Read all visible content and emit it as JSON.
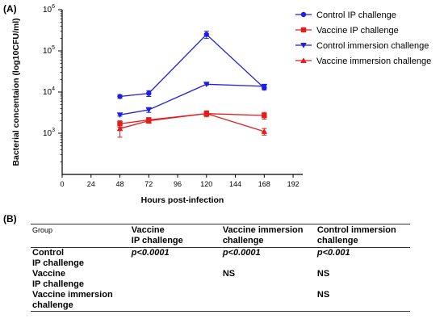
{
  "panel_a_label": "(A)",
  "panel_b_label": "(B)",
  "chart_data": {
    "type": "line",
    "xlabel": "Hours post-infection",
    "ylabel": "Bacterial concentaion (log10CFU/ml)",
    "xlim": [
      0,
      200
    ],
    "xticks": [
      0,
      24,
      48,
      72,
      96,
      120,
      144,
      168,
      192
    ],
    "yscale": "log",
    "ylim": [
      100,
      1000000
    ],
    "yticks": [
      {
        "value": 1000,
        "base": "10",
        "exp": "3"
      },
      {
        "value": 10000,
        "base": "10",
        "exp": "4"
      },
      {
        "value": 100000,
        "base": "10",
        "exp": "5"
      },
      {
        "value": 1000000,
        "base": "10",
        "exp": "6"
      }
    ],
    "legend_position": "top-right",
    "series": [
      {
        "name": "Control IP challenge",
        "color": "#1f1fe0",
        "marker": "circle",
        "x": [
          48,
          72,
          120,
          168
        ],
        "y": [
          7800,
          9300,
          250000,
          12500
        ],
        "err": [
          700,
          1500,
          50000,
          1200
        ]
      },
      {
        "name": "Vaccine IP challenge",
        "color": "#e51c1c",
        "marker": "square",
        "x": [
          48,
          72,
          120,
          168
        ],
        "y": [
          1700,
          2100,
          3000,
          2700
        ],
        "err": [
          300,
          300,
          500,
          500
        ]
      },
      {
        "name": "Control immersion challenge",
        "color": "#1f1fe0",
        "marker": "triangle-down",
        "x": [
          48,
          72,
          120,
          168
        ],
        "y": [
          2800,
          3700,
          15500,
          13800
        ],
        "err": [
          200,
          500,
          700,
          900
        ]
      },
      {
        "name": "Vaccine immersion challenge",
        "color": "#e51c1c",
        "marker": "triangle-up",
        "x": [
          48,
          72,
          120,
          168
        ],
        "y": [
          1300,
          2000,
          3000,
          1100
        ],
        "err": [
          500,
          250,
          350,
          200
        ]
      }
    ]
  },
  "table": {
    "header": [
      "Group",
      "Vaccine\nIP challenge",
      "Vaccine immersion\nchallenge",
      "Control immersion\nchallenge"
    ],
    "rows": [
      {
        "group": "Control\nIP challenge",
        "c1": "p<0.0001",
        "c2": "p<0.0001",
        "c3": "p<0.001"
      },
      {
        "group": "Vaccine\nIP challenge",
        "c1": "",
        "c2": "NS",
        "c3": "NS"
      },
      {
        "group": "Vaccine immersion\nchallenge",
        "c1": "",
        "c2": "",
        "c3": "NS"
      }
    ]
  }
}
